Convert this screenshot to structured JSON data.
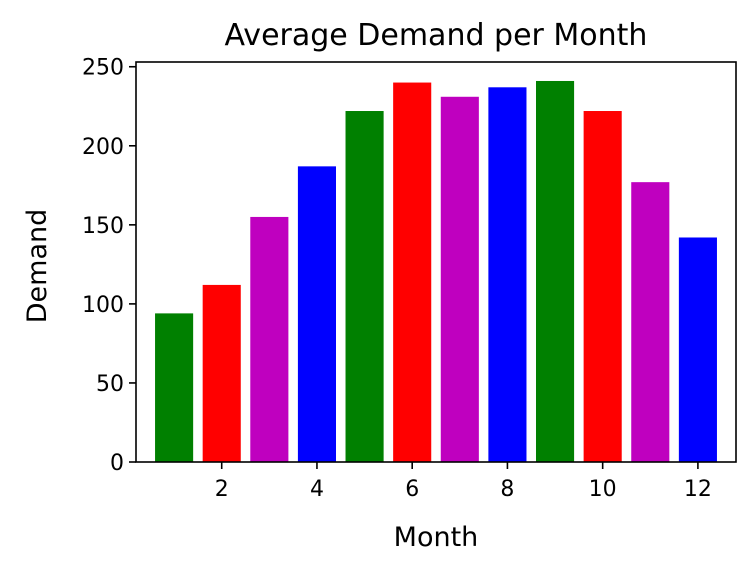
{
  "chart_data": {
    "type": "bar",
    "title": "Average Demand per Month",
    "xlabel": "Month",
    "ylabel": "Demand",
    "x": [
      1,
      2,
      3,
      4,
      5,
      6,
      7,
      8,
      9,
      10,
      11,
      12
    ],
    "values": [
      94,
      112,
      155,
      187,
      222,
      240,
      231,
      237,
      241,
      222,
      177,
      142
    ],
    "bar_colors": [
      "#008000",
      "#ff0000",
      "#bf00bf",
      "#0000ff",
      "#008000",
      "#ff0000",
      "#bf00bf",
      "#0000ff",
      "#008000",
      "#ff0000",
      "#bf00bf",
      "#0000ff"
    ],
    "xlim": [
      0.2,
      12.8
    ],
    "ylim": [
      0,
      253
    ],
    "xticks": [
      2,
      4,
      6,
      8,
      10,
      12
    ],
    "yticks": [
      0,
      50,
      100,
      150,
      200,
      250
    ],
    "grid": false,
    "legend": "none"
  }
}
